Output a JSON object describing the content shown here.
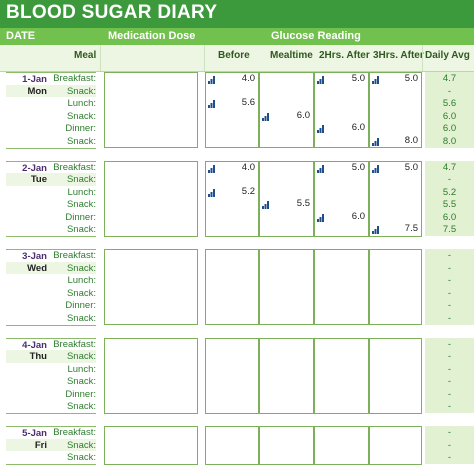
{
  "header": {
    "title": "BLOOD SUGAR DIARY",
    "date_label": "DATE",
    "medication_label": "Medication Dose",
    "glucose_label": "Glucose Reading"
  },
  "columns": {
    "meal": "Meal",
    "before": "Before",
    "mealtime": "Mealtime",
    "two_hrs": "2Hrs. After",
    "three_hrs": "3Hrs. After",
    "daily_avg": "Daily Avg"
  },
  "colors": {
    "title_bg": "#3c9a3c",
    "subheader_bg": "#72c04e",
    "grid_green": "#7db05a",
    "avg_bg": "#e3f1d3"
  },
  "flag_icon": "reading-flag-icon",
  "days": [
    {
      "date": "1-Jan",
      "weekday": "Mon",
      "rows": [
        {
          "meal": "Breakfast:",
          "before": "4.0",
          "mealtime": "",
          "two": "5.0",
          "three": "5.0",
          "avg": "4.7"
        },
        {
          "meal": "Snack:",
          "before": "",
          "mealtime": "",
          "two": "",
          "three": "",
          "avg": "-"
        },
        {
          "meal": "Lunch:",
          "before": "5.6",
          "mealtime": "",
          "two": "",
          "three": "",
          "avg": "5.6"
        },
        {
          "meal": "Snack:",
          "before": "",
          "mealtime": "6.0",
          "two": "",
          "three": "",
          "avg": "6.0"
        },
        {
          "meal": "Dinner:",
          "before": "",
          "mealtime": "",
          "two": "6.0",
          "three": "",
          "avg": "6.0"
        },
        {
          "meal": "Snack:",
          "before": "",
          "mealtime": "",
          "two": "",
          "three": "8.0",
          "avg": "8.0"
        }
      ]
    },
    {
      "date": "2-Jan",
      "weekday": "Tue",
      "rows": [
        {
          "meal": "Breakfast:",
          "before": "4.0",
          "mealtime": "",
          "two": "5.0",
          "three": "5.0",
          "avg": "4.7"
        },
        {
          "meal": "Snack:",
          "before": "",
          "mealtime": "",
          "two": "",
          "three": "",
          "avg": "-"
        },
        {
          "meal": "Lunch:",
          "before": "5.2",
          "mealtime": "",
          "two": "",
          "three": "",
          "avg": "5.2"
        },
        {
          "meal": "Snack:",
          "before": "",
          "mealtime": "5.5",
          "two": "",
          "three": "",
          "avg": "5.5"
        },
        {
          "meal": "Dinner:",
          "before": "",
          "mealtime": "",
          "two": "6.0",
          "three": "",
          "avg": "6.0"
        },
        {
          "meal": "Snack:",
          "before": "",
          "mealtime": "",
          "two": "",
          "three": "7.5",
          "avg": "7.5"
        }
      ]
    },
    {
      "date": "3-Jan",
      "weekday": "Wed",
      "rows": [
        {
          "meal": "Breakfast:",
          "before": "",
          "mealtime": "",
          "two": "",
          "three": "",
          "avg": "-"
        },
        {
          "meal": "Snack:",
          "before": "",
          "mealtime": "",
          "two": "",
          "three": "",
          "avg": "-"
        },
        {
          "meal": "Lunch:",
          "before": "",
          "mealtime": "",
          "two": "",
          "three": "",
          "avg": "-"
        },
        {
          "meal": "Snack:",
          "before": "",
          "mealtime": "",
          "two": "",
          "three": "",
          "avg": "-"
        },
        {
          "meal": "Dinner:",
          "before": "",
          "mealtime": "",
          "two": "",
          "three": "",
          "avg": "-"
        },
        {
          "meal": "Snack:",
          "before": "",
          "mealtime": "",
          "two": "",
          "three": "",
          "avg": "-"
        }
      ]
    },
    {
      "date": "4-Jan",
      "weekday": "Thu",
      "rows": [
        {
          "meal": "Breakfast:",
          "before": "",
          "mealtime": "",
          "two": "",
          "three": "",
          "avg": "-"
        },
        {
          "meal": "Snack:",
          "before": "",
          "mealtime": "",
          "two": "",
          "three": "",
          "avg": "-"
        },
        {
          "meal": "Lunch:",
          "before": "",
          "mealtime": "",
          "two": "",
          "three": "",
          "avg": "-"
        },
        {
          "meal": "Snack:",
          "before": "",
          "mealtime": "",
          "two": "",
          "three": "",
          "avg": "-"
        },
        {
          "meal": "Dinner:",
          "before": "",
          "mealtime": "",
          "two": "",
          "three": "",
          "avg": "-"
        },
        {
          "meal": "Snack:",
          "before": "",
          "mealtime": "",
          "two": "",
          "three": "",
          "avg": "-"
        }
      ]
    },
    {
      "date": "5-Jan",
      "weekday": "Fri",
      "rows": [
        {
          "meal": "Breakfast:",
          "before": "",
          "mealtime": "",
          "two": "",
          "three": "",
          "avg": "-"
        },
        {
          "meal": "Snack:",
          "before": "",
          "mealtime": "",
          "two": "",
          "three": "",
          "avg": "-"
        },
        {
          "meal": "Snack:",
          "before": "",
          "mealtime": "",
          "two": "",
          "three": "",
          "avg": "-"
        }
      ]
    }
  ]
}
